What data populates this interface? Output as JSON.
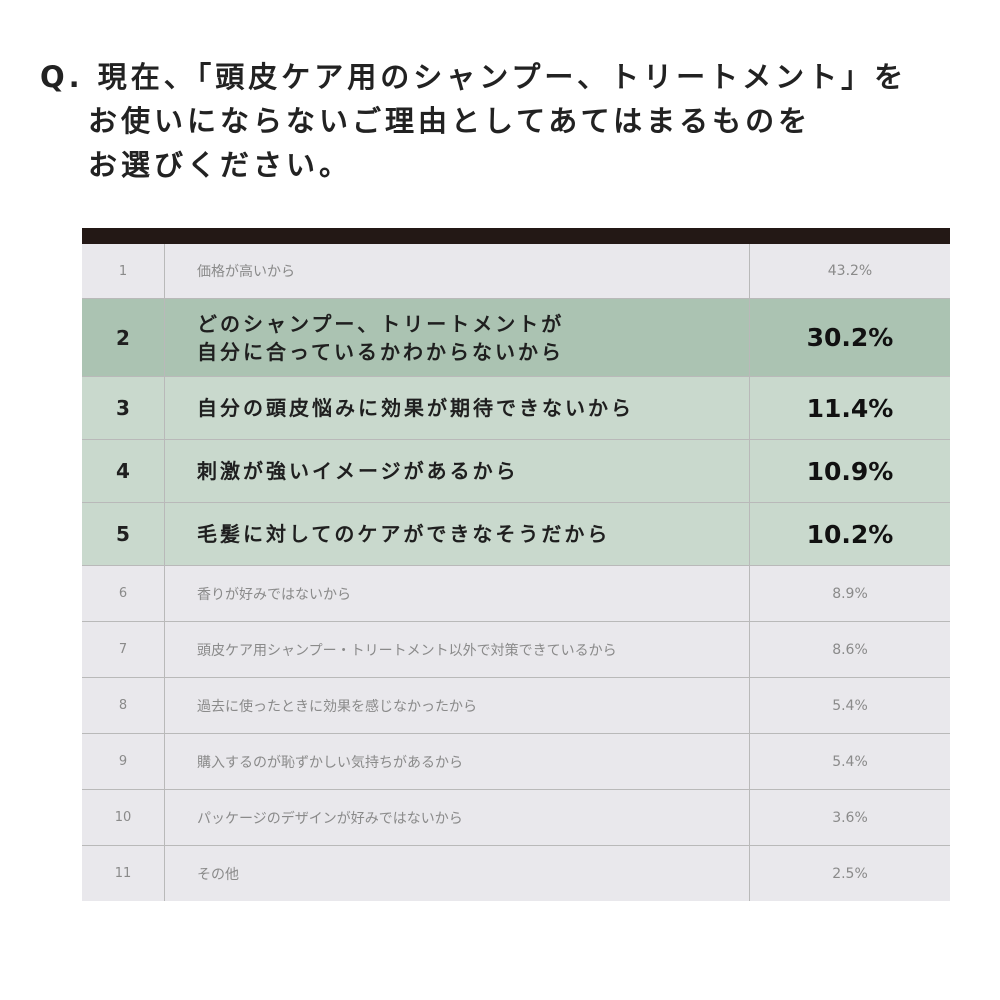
{
  "question": {
    "lines": [
      "Q. 現在、「頭皮ケア用のシャンプー、トリートメント」を",
      "お使いにならないご理由としてあてはまるものを",
      "お選びください。"
    ]
  },
  "table": {
    "rows": [
      {
        "rank": "1",
        "text": "価格が高いから",
        "pct": "43.2%"
      },
      {
        "rank": "2",
        "text": "どのシャンプー、トリートメントが\n自分に合っているかわからないから",
        "pct": "30.2%"
      },
      {
        "rank": "3",
        "text": "自分の頭皮悩みに効果が期待できないから",
        "pct": "11.4%"
      },
      {
        "rank": "4",
        "text": "刺激が強いイメージがあるから",
        "pct": "10.9%"
      },
      {
        "rank": "5",
        "text": "毛髪に対してのケアができなそうだから",
        "pct": "10.2%"
      },
      {
        "rank": "6",
        "text": "香りが好みではないから",
        "pct": "8.9%"
      },
      {
        "rank": "7",
        "text": "頭皮ケア用シャンプー・トリートメント以外で対策できているから",
        "pct": "8.6%"
      },
      {
        "rank": "8",
        "text": "過去に使ったときに効果を感じなかったから",
        "pct": "5.4%"
      },
      {
        "rank": "9",
        "text": "購入するのが恥ずかしい気持ちがあるから",
        "pct": "5.4%"
      },
      {
        "rank": "10",
        "text": "パッケージのデザインが好みではないから",
        "pct": "3.6%"
      },
      {
        "rank": "11",
        "text": "その他",
        "pct": "2.5%"
      }
    ]
  },
  "colors": {
    "header_bar": "#231815",
    "row_default": "#e9e8ec",
    "row_highlight": "#c9d9cd",
    "row_highlight_dark": "#abc3b2"
  }
}
